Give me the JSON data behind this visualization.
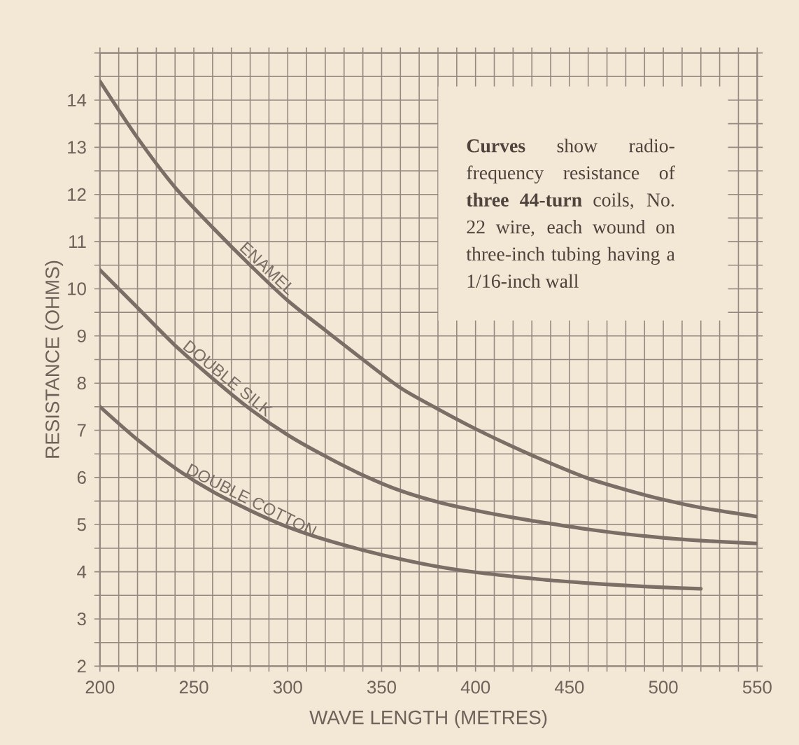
{
  "chart_data": {
    "type": "line",
    "xlabel": "WAVE LENGTH (METRES)",
    "ylabel": "RESISTANCE (OHMS)",
    "x": [
      200,
      220,
      240,
      260,
      280,
      300,
      320,
      340,
      360,
      380,
      400,
      420,
      440,
      460,
      480,
      500,
      520,
      550
    ],
    "series": [
      {
        "name": "ENAMEL",
        "color": "#7b6e66",
        "values": [
          14.4,
          13.2,
          12.15,
          11.3,
          10.5,
          9.75,
          9.12,
          8.5,
          7.9,
          7.45,
          7.03,
          6.65,
          6.3,
          5.98,
          5.74,
          5.53,
          5.36,
          5.17
        ]
      },
      {
        "name": "DOUBLE SILK",
        "color": "#7b6e66",
        "values": [
          10.4,
          9.6,
          8.8,
          8.1,
          7.45,
          6.9,
          6.45,
          6.05,
          5.72,
          5.48,
          5.3,
          5.15,
          5.02,
          4.9,
          4.8,
          4.72,
          4.66,
          4.6
        ]
      },
      {
        "name": "DOUBLE COTTON",
        "color": "#7b6e66",
        "values": [
          7.5,
          6.8,
          6.2,
          5.7,
          5.3,
          4.95,
          4.68,
          4.46,
          4.27,
          4.11,
          3.99,
          3.9,
          3.82,
          3.76,
          3.71,
          3.67,
          3.64,
          null
        ]
      }
    ],
    "xlim": [
      200,
      550
    ],
    "ylim": [
      2,
      15
    ],
    "xticks": [
      200,
      {
        "value": 210,
        "label": null
      },
      {
        "value": 220,
        "label": null
      },
      {
        "value": 230,
        "label": null
      },
      {
        "value": 240,
        "label": null
      },
      250,
      {
        "value": 260,
        "label": null
      },
      {
        "value": 270,
        "label": null
      },
      {
        "value": 280,
        "label": null
      },
      {
        "value": 290,
        "label": null
      },
      300,
      {
        "value": 310,
        "label": null
      },
      {
        "value": 320,
        "label": null
      },
      {
        "value": 330,
        "label": null
      },
      {
        "value": 340,
        "label": null
      },
      350,
      {
        "value": 360,
        "label": null
      },
      {
        "value": 370,
        "label": null
      },
      {
        "value": 380,
        "label": null
      },
      {
        "value": 390,
        "label": null
      },
      400,
      {
        "value": 410,
        "label": null
      },
      {
        "value": 420,
        "label": null
      },
      {
        "value": 430,
        "label": null
      },
      {
        "value": 440,
        "label": null
      },
      450,
      {
        "value": 460,
        "label": null
      },
      {
        "value": 470,
        "label": null
      },
      {
        "value": 480,
        "label": null
      },
      {
        "value": 490,
        "label": null
      },
      500,
      {
        "value": 510,
        "label": null
      },
      {
        "value": 520,
        "label": null
      },
      {
        "value": 530,
        "label": null
      },
      {
        "value": 540,
        "label": null
      },
      550
    ],
    "yticks": [
      2,
      {
        "value": 2.5,
        "label": null
      },
      3,
      {
        "value": 3.5,
        "label": null
      },
      4,
      {
        "value": 4.5,
        "label": null
      },
      5,
      {
        "value": 5.5,
        "label": null
      },
      6,
      {
        "value": 6.5,
        "label": null
      },
      7,
      {
        "value": 7.5,
        "label": null
      },
      8,
      {
        "value": 8.5,
        "label": null
      },
      9,
      {
        "value": 9.5,
        "label": null
      },
      10,
      {
        "value": 10.5,
        "label": null
      },
      11,
      {
        "value": 11.5,
        "label": null
      },
      12,
      {
        "value": 12.5,
        "label": null
      },
      13,
      {
        "value": 13.5,
        "label": null
      },
      14,
      {
        "value": 14.5,
        "label": null
      },
      {
        "value": 15,
        "label": null
      }
    ],
    "grid": true,
    "marker": "none",
    "line_style": "solid",
    "legend": false,
    "annotations": [
      "**Curves** show radio-frequency resistance of **three 44-turn** coils, No. 22 wire, each wound on three-inch tubing having a 1/16-inch wall"
    ]
  }
}
